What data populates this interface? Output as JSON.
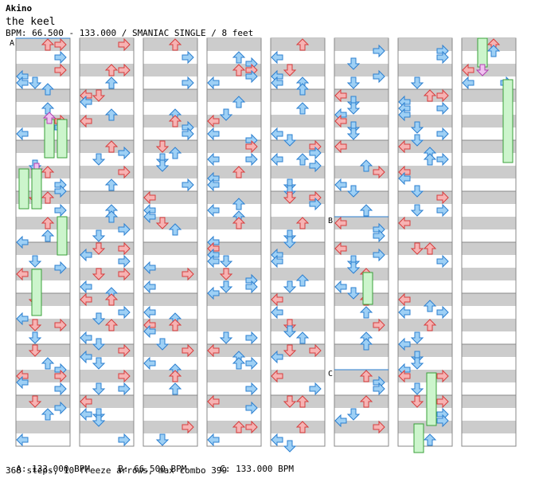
{
  "header": {
    "artist": "Akino",
    "title": "the keel",
    "bpm_line": "BPM: 66.500 - 133.000 / SMANIAC SINGLE / 8 feet"
  },
  "markers": [
    {
      "label": "A",
      "column": 0,
      "beat": 0
    },
    {
      "label": "B",
      "column": 5,
      "beat": 14
    },
    {
      "label": "C",
      "column": 5,
      "beat": 26
    }
  ],
  "footer": {
    "bpm_a": "A: 133.000 BPM",
    "bpm_b": "B: 66.500 BPM",
    "bpm_c": "C: 133.000 BPM",
    "stats": "368 steps, 10 freeze arrows, max combo 399"
  },
  "colors": {
    "quarter": "#f6b3b3",
    "quarter_stroke": "#d83c3c",
    "eighth": "#9ed0f5",
    "eighth_stroke": "#2b7fd0",
    "freeze": "#ccf5cc",
    "freeze_stroke": "#3aa03a",
    "freeze_head": "#f0c2f0",
    "freeze_head_stroke": "#b040b0",
    "band": "#cccccc"
  }
}
